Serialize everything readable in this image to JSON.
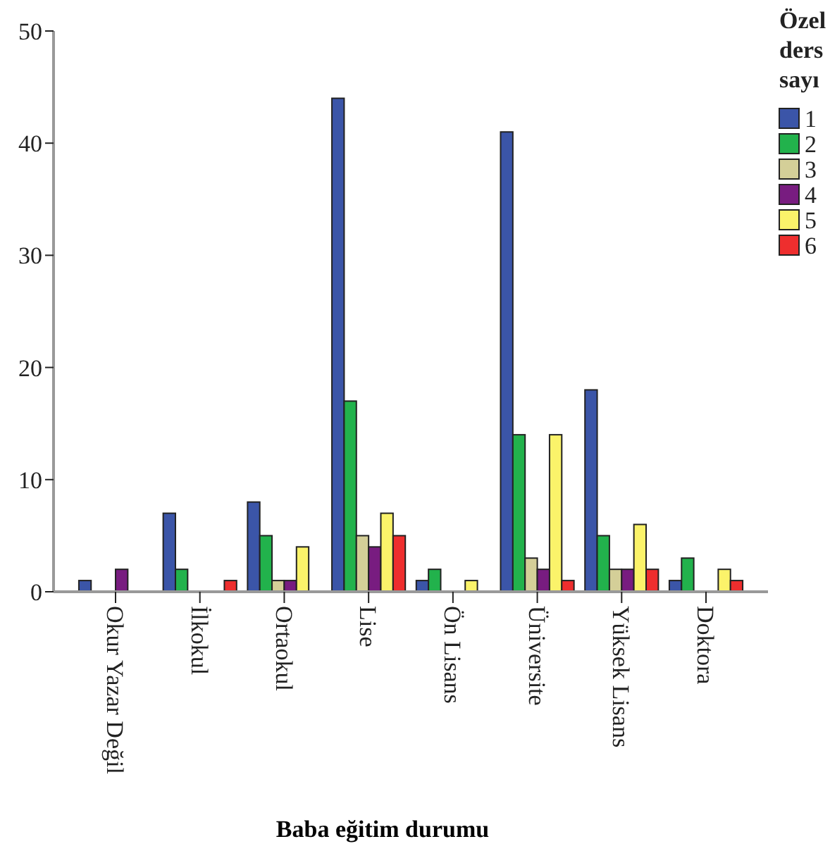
{
  "chart_data": {
    "type": "bar",
    "xlabel": "Baba eğitim durumu",
    "legend_title": "Özel ders sayı",
    "legend": "top right",
    "categories": [
      "Okur Yazar Değil",
      "İlkokul",
      "Ortaokul",
      "Lise",
      "Ön Lisans",
      "Üniversite",
      "Yüksek Lisans",
      "Doktora"
    ],
    "series": [
      {
        "name": "1",
        "color": "#3b55a8",
        "values": [
          1,
          7,
          8,
          44,
          1,
          41,
          18,
          1
        ]
      },
      {
        "name": "2",
        "color": "#22b24c",
        "values": [
          null,
          2,
          5,
          17,
          2,
          14,
          5,
          3
        ]
      },
      {
        "name": "3",
        "color": "#d4cf98",
        "values": [
          null,
          null,
          1,
          5,
          null,
          3,
          2,
          null
        ]
      },
      {
        "name": "4",
        "color": "#781c80",
        "values": [
          2,
          null,
          1,
          4,
          null,
          2,
          2,
          null
        ]
      },
      {
        "name": "5",
        "color": "#fbf36a",
        "values": [
          null,
          null,
          4,
          7,
          1,
          14,
          6,
          2
        ]
      },
      {
        "name": "6",
        "color": "#ee2e2e",
        "values": [
          null,
          1,
          null,
          5,
          null,
          1,
          2,
          1
        ]
      }
    ],
    "ylim": [
      0,
      50
    ],
    "yticks": [
      0,
      10,
      20,
      30,
      40,
      50
    ],
    "grid": false
  }
}
